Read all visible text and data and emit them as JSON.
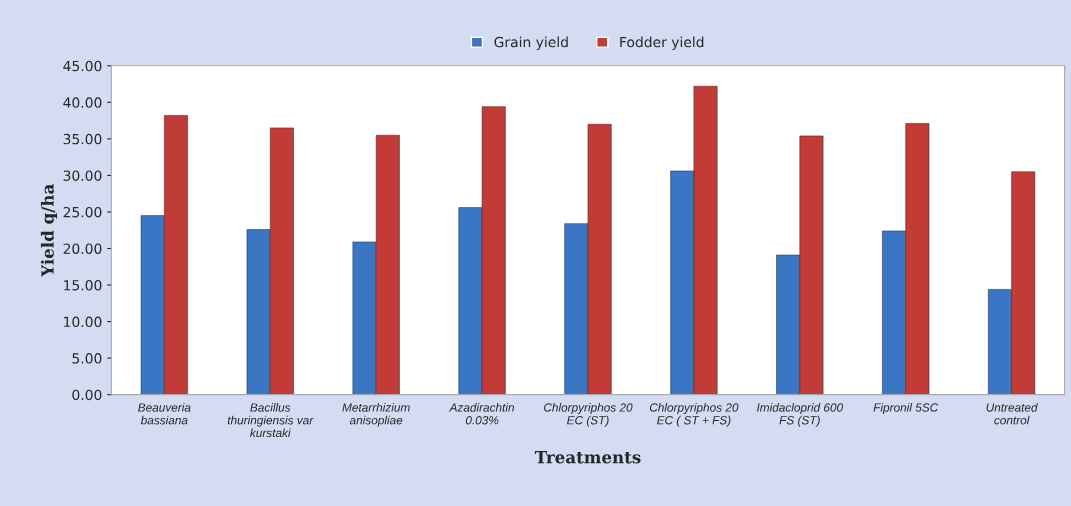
{
  "chart_data": {
    "type": "bar",
    "xlabel": "Treatments",
    "ylabel": "Yield q/ha",
    "categories": [
      "Beauveria\nbassiana",
      "Bacillus\nthuringiensis var\nkurstaki",
      "Metarrhizium\nanisopliae",
      "Azadirachtin\n0.03%",
      "Chlorpyriphos 20\nEC (ST)",
      "Chlorpyriphos 20\nEC ( ST + FS)",
      "Imidacloprid 600\nFS (ST)",
      "Fipronil 5SC",
      "Untreated\ncontrol"
    ],
    "series": [
      {
        "name": "Grain yield",
        "color": "#3a76c4",
        "values": [
          24.5,
          22.6,
          20.9,
          25.6,
          23.4,
          30.6,
          19.1,
          22.4,
          14.4
        ]
      },
      {
        "name": "Fodder yield",
        "color": "#c23b37",
        "values": [
          38.2,
          36.5,
          35.5,
          39.4,
          37.0,
          42.2,
          35.4,
          37.1,
          30.5
        ]
      }
    ],
    "ylim": [
      0,
      45
    ],
    "yticks": [
      {
        "value": 0,
        "label": "0.00"
      },
      {
        "value": 5,
        "label": "5.00"
      },
      {
        "value": 10,
        "label": "10.00"
      },
      {
        "value": 15,
        "label": "15.00"
      },
      {
        "value": 20,
        "label": "20.00"
      },
      {
        "value": 25,
        "label": "25.00"
      },
      {
        "value": 30,
        "label": "30.00"
      },
      {
        "value": 35,
        "label": "35.00"
      },
      {
        "value": 40,
        "label": "40.00"
      },
      {
        "value": 45,
        "label": "45.00"
      }
    ],
    "legend": "top",
    "grid": false
  }
}
